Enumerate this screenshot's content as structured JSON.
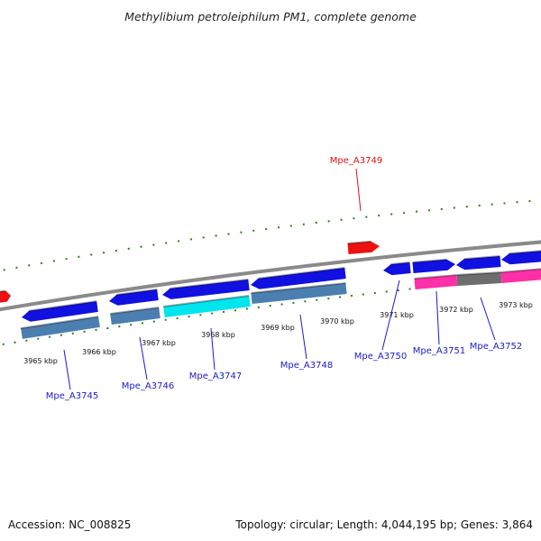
{
  "title": "Methylibium petroleiphilum PM1, complete genome",
  "footer": {
    "accession": "Accession: NC_008825",
    "summary": "Topology: circular; Length: 4,044,195 bp; Genes: 3,864"
  },
  "colors": {
    "backbone": "#8a8a8a",
    "tick": "#2e7d1e",
    "gene_forward": "#1010e0",
    "gene_reverse": "#4a7fb0",
    "gene_highlight": "#00e5ee",
    "gene_pink": "#ff2fa8",
    "gene_gray": "#6d6d6d",
    "gene_red": "#ee1111",
    "label_blue": "#1a1acc",
    "label_red": "#dd1111"
  },
  "ticks": [
    "3965 kbp",
    "3966 kbp",
    "3967 kbp",
    "3968 kbp",
    "3969 kbp",
    "3970 kbp",
    "3971 kbp",
    "3972 kbp",
    "3973 kbp"
  ],
  "gene_labels": [
    "Mpe_A3745",
    "Mpe_A3746",
    "Mpe_A3747",
    "Mpe_A3748",
    "Mpe_A3749",
    "Mpe_A3750",
    "Mpe_A3751",
    "Mpe_A3752"
  ]
}
